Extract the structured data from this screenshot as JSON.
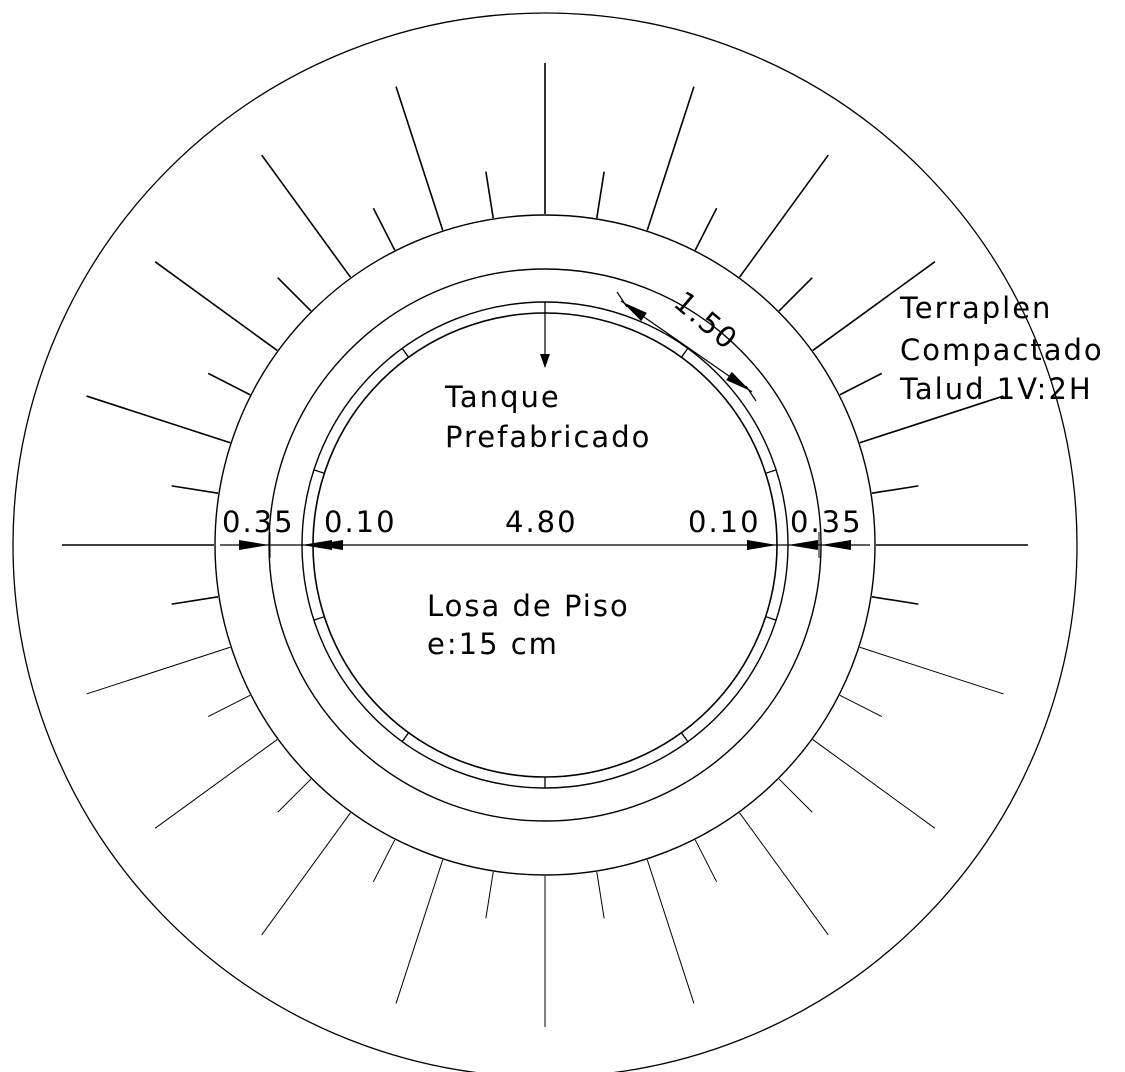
{
  "labels": {
    "tank_line1": "Tanque",
    "tank_line2": "Prefabricado",
    "slab_line1": "Losa de Piso",
    "slab_line2": "e:15 cm",
    "fill_line1": "Terraplen",
    "fill_line2": "Compactado",
    "fill_line3": "Talud 1V:2H"
  },
  "dimensions": {
    "wall_left": "0.35",
    "inner_left": "0.10",
    "diameter": "4.80",
    "inner_right": "0.10",
    "wall_right": "0.35",
    "panel_arc": "1.50"
  },
  "colors": {
    "line": "#000000",
    "background": "#ffffff"
  }
}
